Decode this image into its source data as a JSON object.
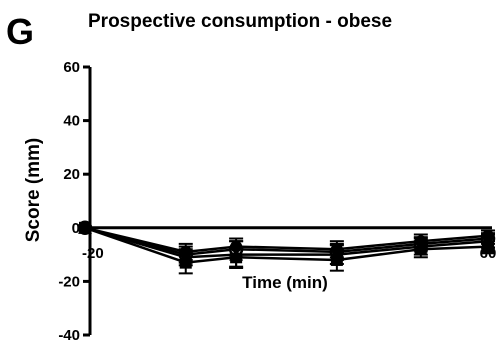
{
  "panel_label": "G",
  "chart_data": {
    "type": "line",
    "title": "Prospective consumption - obese",
    "xlabel": "Time (min)",
    "ylabel": "Score (mm)",
    "ylim": [
      -40,
      60
    ],
    "y_ticks": [
      -40,
      -20,
      0,
      20,
      40,
      60
    ],
    "x_tick_labels": [
      {
        "text": "-20",
        "x": 0
      },
      {
        "text": "60",
        "x": 240
      }
    ],
    "x": [
      0,
      60,
      90,
      150,
      200,
      240
    ],
    "xlim": [
      0,
      240
    ],
    "series": [
      {
        "marker": "square",
        "values": [
          0,
          -13,
          -11,
          -12,
          -8,
          -7
        ],
        "errors": [
          0,
          4,
          3.5,
          4,
          3,
          2.5
        ]
      },
      {
        "marker": "circle-open",
        "values": [
          0,
          -10,
          -8,
          -9,
          -6,
          -4
        ],
        "errors": [
          0,
          3,
          3,
          3,
          2.5,
          2
        ]
      },
      {
        "marker": "circle",
        "values": [
          0,
          -9,
          -7,
          -8,
          -5,
          -3
        ],
        "errors": [
          0,
          3,
          3,
          3,
          2.5,
          2
        ]
      },
      {
        "marker": "triangle",
        "values": [
          0,
          -11,
          -10,
          -10,
          -7,
          -5
        ],
        "errors": [
          0,
          3,
          5,
          3.5,
          3,
          2.5
        ]
      }
    ],
    "grid": false,
    "legend": "none"
  }
}
